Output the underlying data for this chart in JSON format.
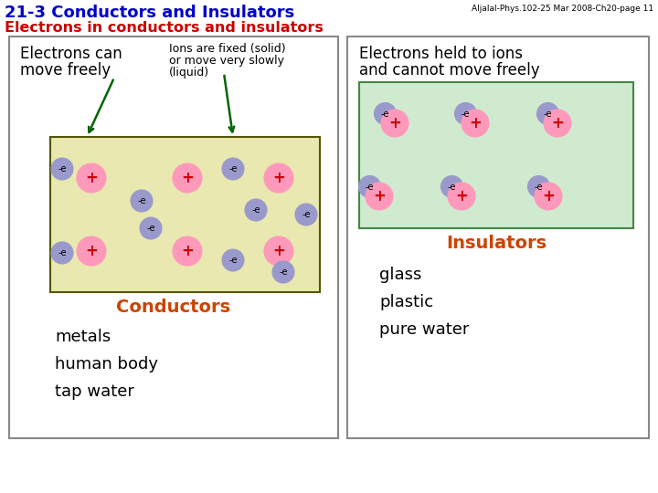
{
  "title1": "21-3 Conductors and Insulators",
  "title2": "Electrons in conductors and insulators",
  "header_note": "Aljalal-Phys.102-25 Mar 2008-Ch20-page 11",
  "title_color": "#0000cc",
  "bg_color": "#ffffff",
  "conductor_rect_bg": "#e8e8b0",
  "insulator_rect_bg": "#d0ead0",
  "conductor_label": "Conductors",
  "insulator_label": "Insulators",
  "conductor_examples": [
    "metals",
    "human body",
    "tap water"
  ],
  "insulator_examples": [
    "glass",
    "plastic",
    "pure water"
  ],
  "label_color": "#cc4400",
  "ion_color": "#ff99bb",
  "electron_color": "#9999cc",
  "ion_plus_color": "#cc0000",
  "left_desc1": "Electrons can",
  "left_desc2": "move freely",
  "right_desc1": "Ions are fixed (solid)",
  "right_desc2": "or move very slowly",
  "right_desc3": "(liquid)",
  "right_panel_desc1": "Electrons held to ions",
  "right_panel_desc2": "and cannot move freely",
  "arrow_color": "#006600"
}
